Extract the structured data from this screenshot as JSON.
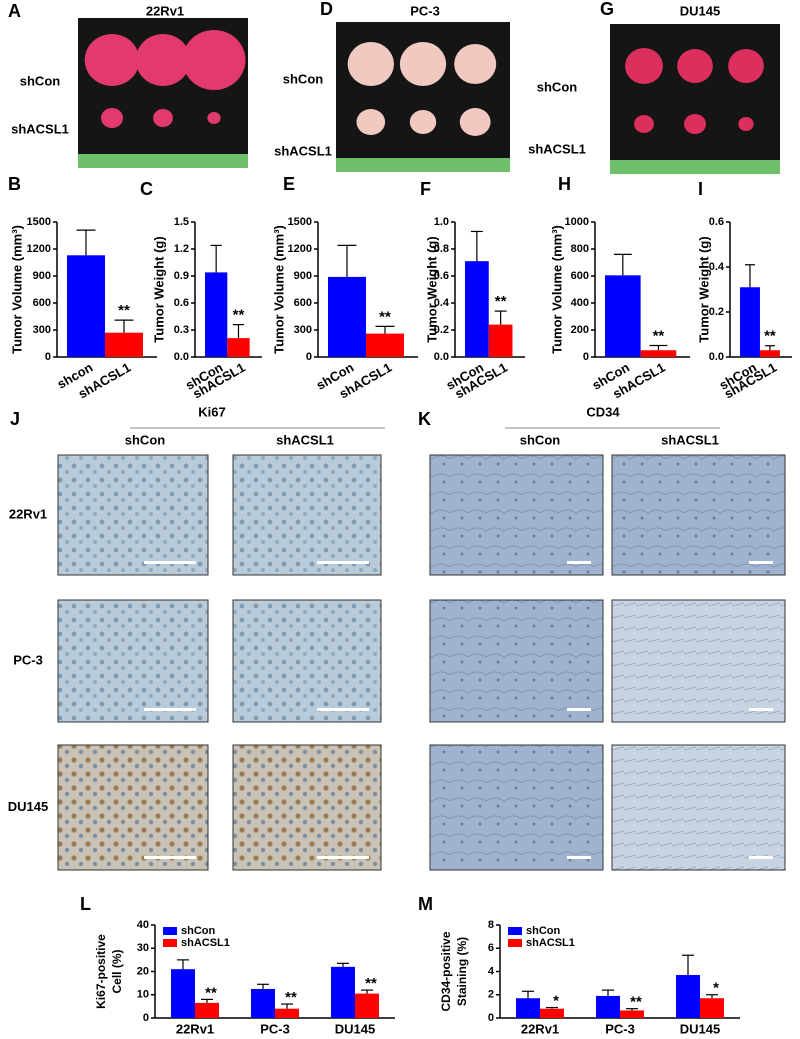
{
  "figure": {
    "tumor_photos": [
      {
        "label": "A",
        "title": "22Rv1",
        "rows": [
          "shCon",
          "shACSL1"
        ]
      },
      {
        "label": "D",
        "title": "PC-3",
        "rows": [
          "shCon",
          "shACSL1"
        ]
      },
      {
        "label": "G",
        "title": "DU145",
        "rows": [
          "shCon",
          "shACSL1"
        ]
      }
    ],
    "ihc": [
      {
        "label": "J",
        "title": "Ki67",
        "columns": [
          "shCon",
          "shACSL1"
        ]
      },
      {
        "label": "K",
        "title": "CD34",
        "columns": [
          "shCon",
          "shACSL1"
        ]
      }
    ],
    "ihc_rows": [
      "22Rv1",
      "PC-3",
      "DU145"
    ]
  },
  "chart_data": [
    {
      "label": "B",
      "type": "bar",
      "ylabel": "Tumor Volume (mm³)",
      "categories": [
        "shcon",
        "shACSL1"
      ],
      "values": [
        1130,
        270
      ],
      "errors": [
        280,
        140
      ],
      "colors": [
        "#0000ff",
        "#ff0000"
      ],
      "significance": [
        null,
        "**"
      ],
      "ylim": [
        0,
        1500
      ],
      "yticks": [
        0,
        300,
        600,
        900,
        1200,
        1500
      ]
    },
    {
      "label": "C",
      "type": "bar",
      "ylabel": "Tumor Weight (g)",
      "categories": [
        "shCon",
        "shACSL1"
      ],
      "values": [
        0.94,
        0.21
      ],
      "errors": [
        0.3,
        0.15
      ],
      "colors": [
        "#0000ff",
        "#ff0000"
      ],
      "significance": [
        null,
        "**"
      ],
      "ylim": [
        0,
        1.5
      ],
      "yticks": [
        {
          "value": 0,
          "label": "0.0"
        },
        0.3,
        0.6,
        0.9,
        1.2,
        1.5
      ]
    },
    {
      "label": "E",
      "type": "bar",
      "ylabel": "Tumor Volume (mm³)",
      "categories": [
        "shCon",
        "shACSL1"
      ],
      "values": [
        890,
        260
      ],
      "errors": [
        350,
        80
      ],
      "colors": [
        "#0000ff",
        "#ff0000"
      ],
      "significance": [
        null,
        "**"
      ],
      "ylim": [
        0,
        1500
      ],
      "yticks": [
        0,
        300,
        600,
        900,
        1200,
        1500
      ]
    },
    {
      "label": "F",
      "type": "bar",
      "ylabel": "Tumor Weight (g)",
      "categories": [
        "shCon",
        "shACSL1"
      ],
      "values": [
        0.71,
        0.24
      ],
      "errors": [
        0.22,
        0.1
      ],
      "colors": [
        "#0000ff",
        "#ff0000"
      ],
      "significance": [
        null,
        "**"
      ],
      "ylim": [
        0,
        1.0
      ],
      "yticks": [
        {
          "value": 0,
          "label": "0.0"
        },
        0.2,
        0.4,
        0.6,
        0.8,
        {
          "value": 1.0,
          "label": "1.0"
        }
      ]
    },
    {
      "label": "H",
      "type": "bar",
      "ylabel": "Tumor Volume (mm³)",
      "categories": [
        "shCon",
        "shACSL1"
      ],
      "values": [
        605,
        50
      ],
      "errors": [
        155,
        35
      ],
      "colors": [
        "#0000ff",
        "#ff0000"
      ],
      "significance": [
        null,
        "**"
      ],
      "ylim": [
        0,
        1000
      ],
      "yticks": [
        0,
        200,
        400,
        600,
        800,
        1000
      ]
    },
    {
      "label": "I",
      "type": "bar",
      "ylabel": "Tumor Weight (g)",
      "categories": [
        "shCon",
        "shACSL1"
      ],
      "values": [
        0.31,
        0.03
      ],
      "errors": [
        0.1,
        0.02
      ],
      "colors": [
        "#0000ff",
        "#ff0000"
      ],
      "significance": [
        null,
        "**"
      ],
      "ylim": [
        0,
        0.6
      ],
      "yticks": [
        {
          "value": 0,
          "label": "0.0"
        },
        0.2,
        0.4,
        0.6
      ]
    },
    {
      "label": "L",
      "type": "grouped_bar",
      "ylabel": [
        "Ki67-positive",
        "Cell (%)"
      ],
      "categories": [
        "22Rv1",
        "PC-3",
        "DU145"
      ],
      "series": [
        {
          "name": "shCon",
          "color": "#0000ff",
          "values": [
            21,
            12.5,
            22
          ],
          "errors": [
            4,
            2,
            1.5
          ]
        },
        {
          "name": "shACSL1",
          "color": "#ff0000",
          "values": [
            6.5,
            4,
            10.5
          ],
          "errors": [
            1.5,
            2,
            1.5
          ],
          "significance": [
            "**",
            "**",
            "**"
          ]
        }
      ],
      "ylim": [
        0,
        40
      ],
      "yticks": [
        0,
        10,
        20,
        30,
        40
      ],
      "legend": "upper left"
    },
    {
      "label": "M",
      "type": "grouped_bar",
      "ylabel": [
        "CD34-positive",
        "Staining (%)"
      ],
      "categories": [
        "22Rv1",
        "PC-3",
        "DU145"
      ],
      "series": [
        {
          "name": "shCon",
          "color": "#0000ff",
          "values": [
            1.7,
            1.9,
            3.7
          ],
          "errors": [
            0.6,
            0.5,
            1.7
          ]
        },
        {
          "name": "shACSL1",
          "color": "#ff0000",
          "values": [
            0.8,
            0.65,
            1.7
          ],
          "errors": [
            0.1,
            0.15,
            0.3
          ],
          "significance": [
            "*",
            "**",
            "*"
          ]
        }
      ],
      "ylim": [
        0,
        8
      ],
      "yticks": [
        0,
        2,
        4,
        6,
        8
      ],
      "legend": "upper left"
    }
  ]
}
